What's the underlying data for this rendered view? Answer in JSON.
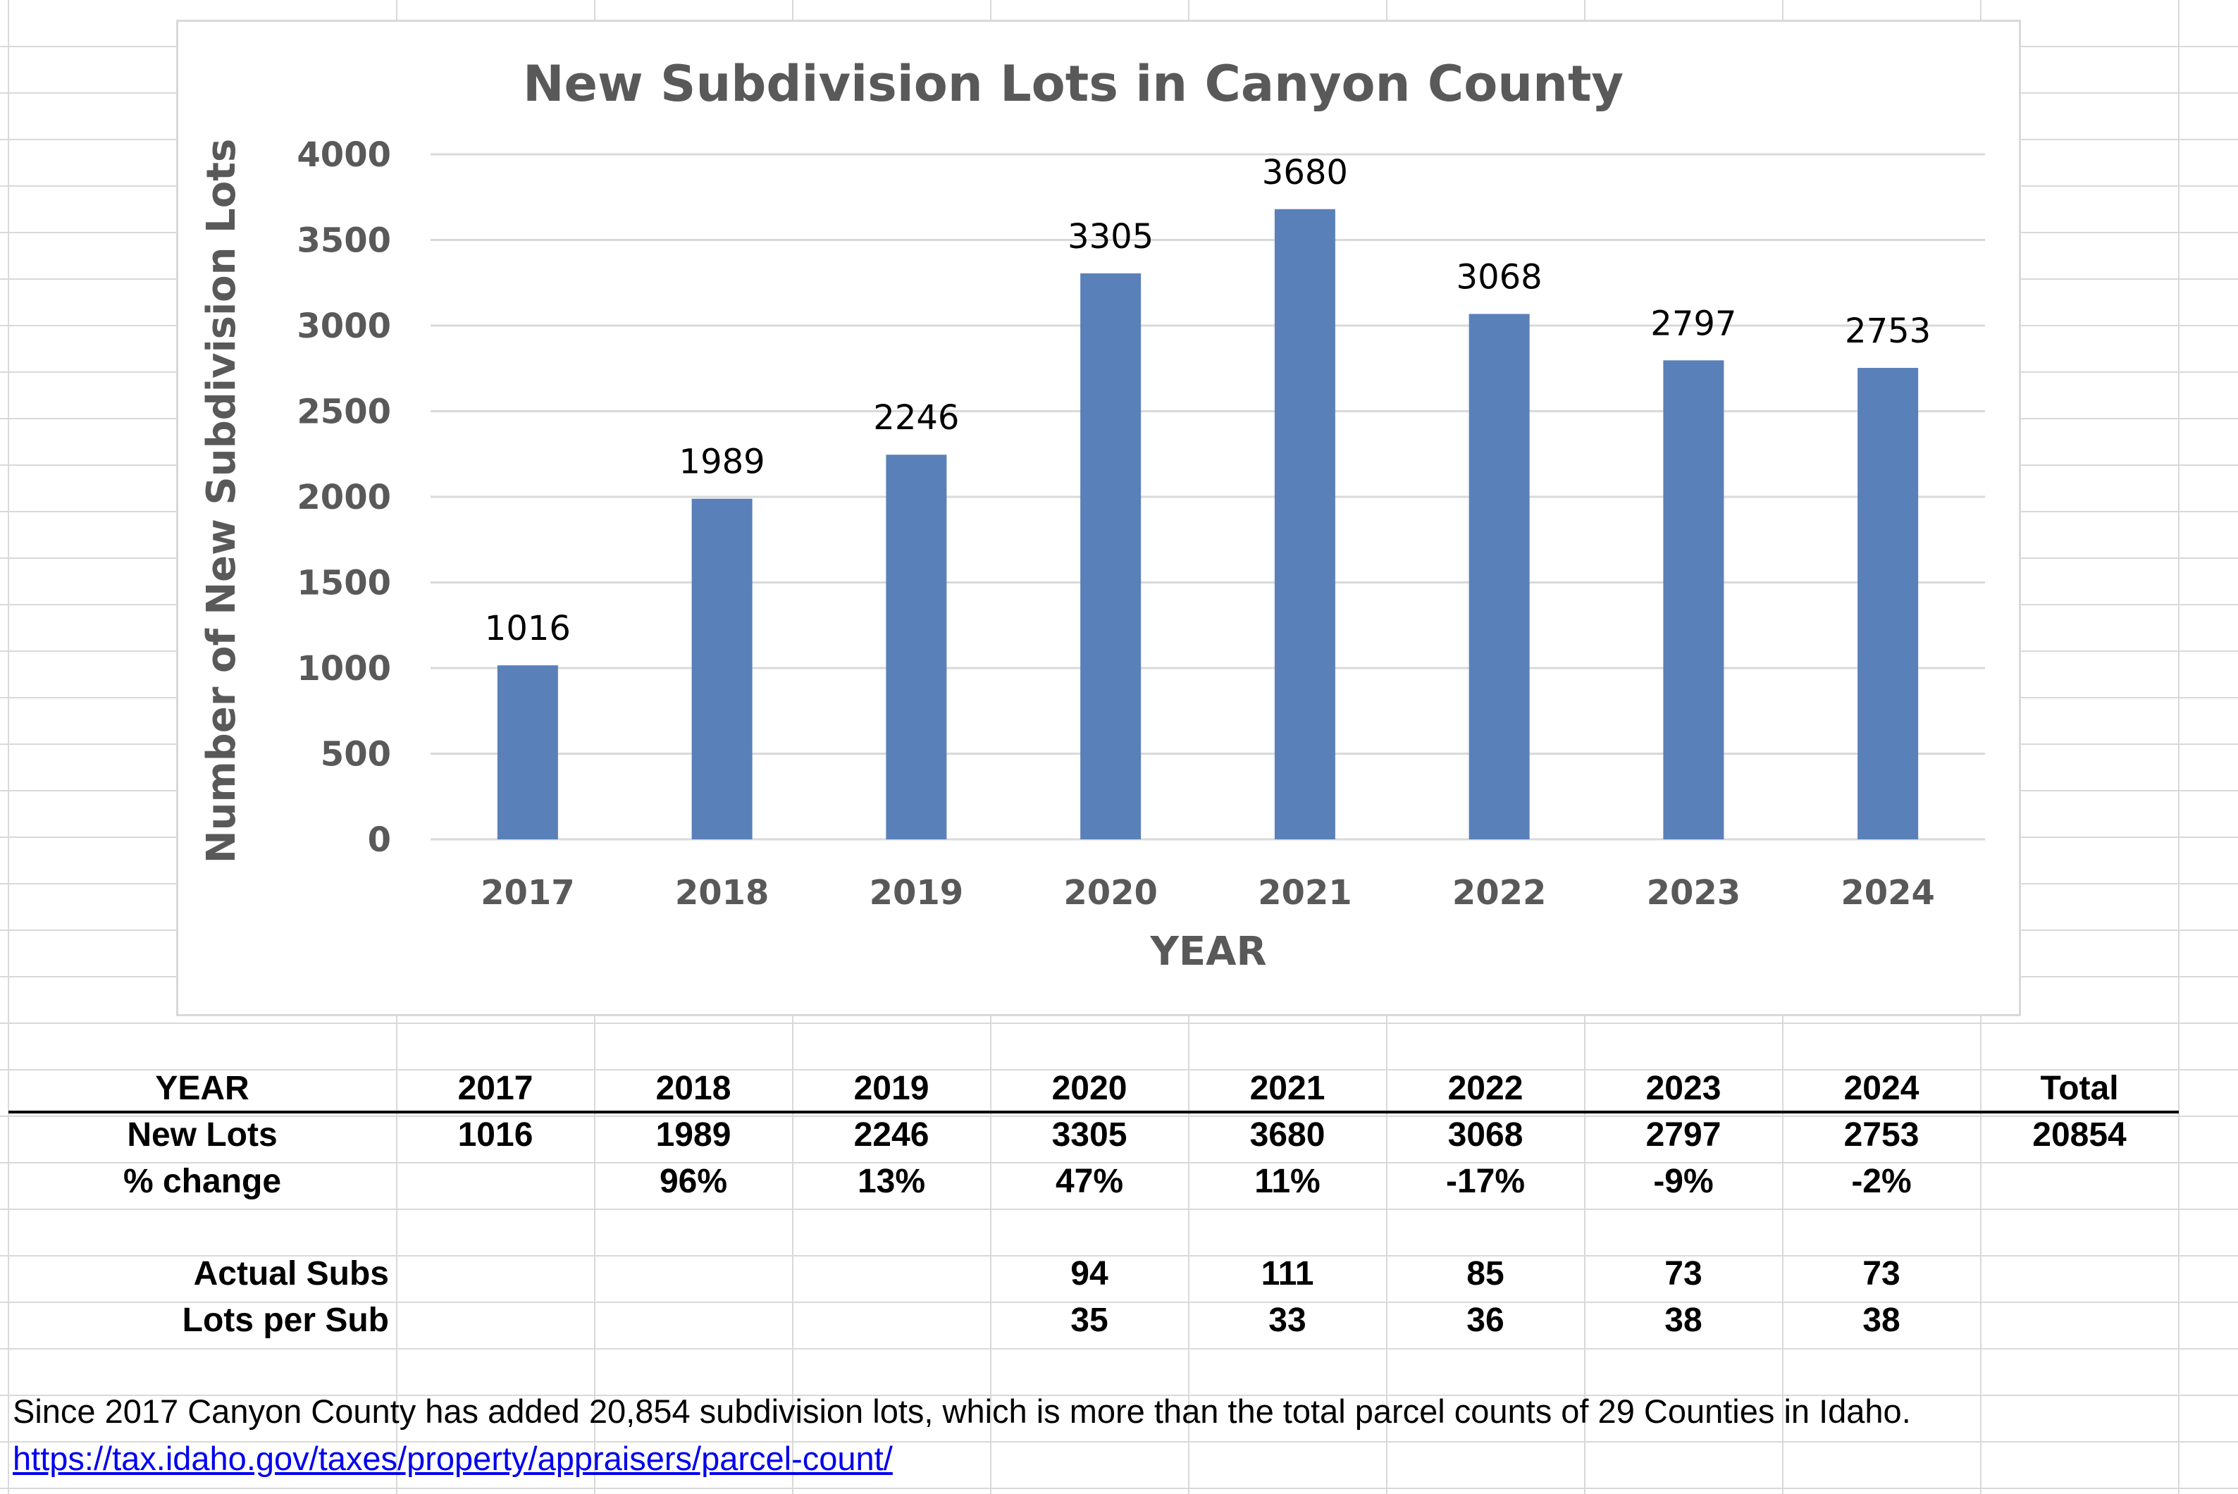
{
  "chart_data": {
    "type": "bar",
    "title": "New Subdivision Lots in Canyon County",
    "xlabel": "YEAR",
    "ylabel": "Number of New Subdivision Lots",
    "categories": [
      "2017",
      "2018",
      "2019",
      "2020",
      "2021",
      "2022",
      "2023",
      "2024"
    ],
    "values": [
      1016,
      1989,
      2246,
      3305,
      3680,
      3068,
      2797,
      2753
    ],
    "data_labels": [
      "1016",
      "1989",
      "2246",
      "3305",
      "3680",
      "3068",
      "2797",
      "2753"
    ],
    "ylim": [
      0,
      4000
    ],
    "yticks": [
      "0",
      "500",
      "1000",
      "1500",
      "2000",
      "2500",
      "3000",
      "3500",
      "4000"
    ],
    "grid": true,
    "legend": "none",
    "bar_color": "#5a80b9"
  },
  "table": {
    "rows": [
      {
        "label": "YEAR",
        "cells": [
          "2017",
          "2018",
          "2019",
          "2020",
          "2021",
          "2022",
          "2023",
          "2024",
          "Total"
        ]
      },
      {
        "label": "New Lots",
        "cells": [
          "1016",
          "1989",
          "2246",
          "3305",
          "3680",
          "3068",
          "2797",
          "2753",
          "20854"
        ]
      },
      {
        "label": "% change",
        "cells": [
          "",
          "96%",
          "13%",
          "47%",
          "11%",
          "-17%",
          "-9%",
          "-2%",
          ""
        ]
      },
      {
        "label": "Actual Subs",
        "cells": [
          "",
          "",
          "",
          "94",
          "111",
          "85",
          "73",
          "73",
          ""
        ]
      },
      {
        "label": "Lots per Sub",
        "cells": [
          "",
          "",
          "",
          "35",
          "33",
          "36",
          "38",
          "38",
          ""
        ]
      }
    ]
  },
  "note": "Since 2017 Canyon County has added 20,854 subdivision lots, which is more than the total parcel counts of 29 Counties in Idaho.",
  "link": "https://tax.idaho.gov/taxes/property/appraisers/parcel-count/"
}
